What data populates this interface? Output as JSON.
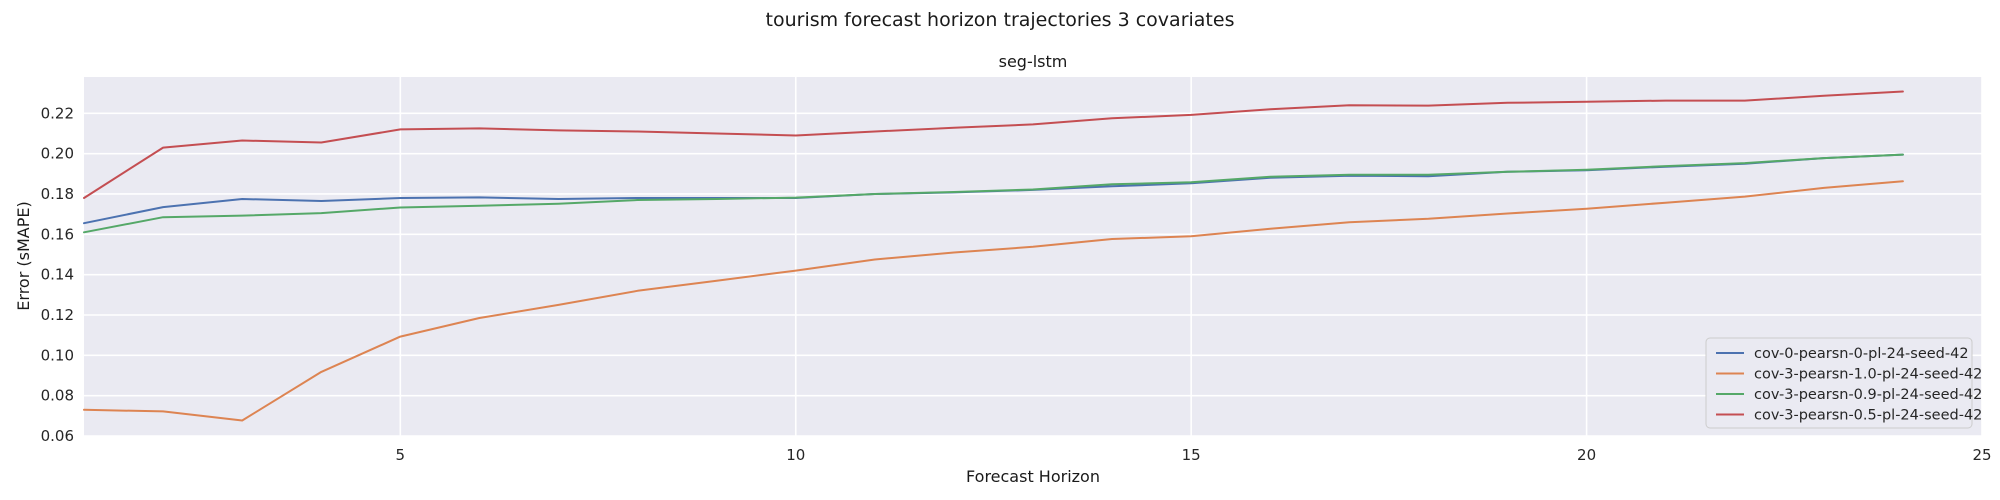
{
  "chart_data": {
    "type": "line",
    "title": "tourism forecast horizon trajectories 3 covariates",
    "subtitle": "seg-lstm",
    "xlabel": "Forecast Horizon",
    "ylabel": "Error (sMAPE)",
    "xlim": [
      1,
      25
    ],
    "ylim": [
      0.06,
      0.238
    ],
    "x_ticks": [
      5,
      10,
      15,
      20,
      25
    ],
    "y_ticks": [
      0.06,
      0.08,
      0.1,
      0.12,
      0.14,
      0.16,
      0.18,
      0.2,
      0.22
    ],
    "y_tick_labels": [
      "0.06",
      "0.08",
      "0.10",
      "0.12",
      "0.14",
      "0.16",
      "0.18",
      "0.20",
      "0.22"
    ],
    "grid": true,
    "legend_position": "lower-right",
    "x": [
      1,
      2,
      3,
      4,
      5,
      6,
      7,
      8,
      9,
      10,
      11,
      12,
      13,
      14,
      15,
      16,
      17,
      18,
      19,
      20,
      21,
      22,
      23,
      24
    ],
    "series": [
      {
        "name": "cov-0-pearsn-0-pl-24-seed-42",
        "color": "#4c72b0",
        "values": [
          0.1655,
          0.1735,
          0.1775,
          0.1765,
          0.178,
          0.1783,
          0.1775,
          0.178,
          0.178,
          0.178,
          0.18,
          0.1808,
          0.182,
          0.1838,
          0.1853,
          0.188,
          0.189,
          0.1888,
          0.191,
          0.1918,
          0.1935,
          0.195,
          0.1978,
          0.1995
        ]
      },
      {
        "name": "cov-3-pearsn-1.0-pl-24-seed-42",
        "color": "#dd8452",
        "values": [
          0.073,
          0.0722,
          0.0677,
          0.0918,
          0.1093,
          0.1185,
          0.125,
          0.132,
          0.137,
          0.142,
          0.1475,
          0.151,
          0.1538,
          0.1577,
          0.159,
          0.1628,
          0.166,
          0.1677,
          0.1703,
          0.1727,
          0.1757,
          0.1787,
          0.183,
          0.1863
        ]
      },
      {
        "name": "cov-3-pearsn-0.9-pl-24-seed-42",
        "color": "#55a868",
        "values": [
          0.161,
          0.1685,
          0.1693,
          0.1705,
          0.1733,
          0.1742,
          0.1752,
          0.177,
          0.1775,
          0.1782,
          0.18,
          0.181,
          0.1822,
          0.1848,
          0.1858,
          0.1885,
          0.1895,
          0.1895,
          0.191,
          0.192,
          0.1938,
          0.1953,
          0.1978,
          0.1995
        ]
      },
      {
        "name": "cov-3-pearsn-0.5-pl-24-seed-42",
        "color": "#c44e52",
        "values": [
          0.178,
          0.203,
          0.2065,
          0.2055,
          0.212,
          0.2125,
          0.2115,
          0.211,
          0.21,
          0.209,
          0.211,
          0.2128,
          0.2145,
          0.2175,
          0.2192,
          0.222,
          0.224,
          0.2238,
          0.2252,
          0.2257,
          0.2263,
          0.2263,
          0.2287,
          0.2308
        ]
      }
    ]
  }
}
